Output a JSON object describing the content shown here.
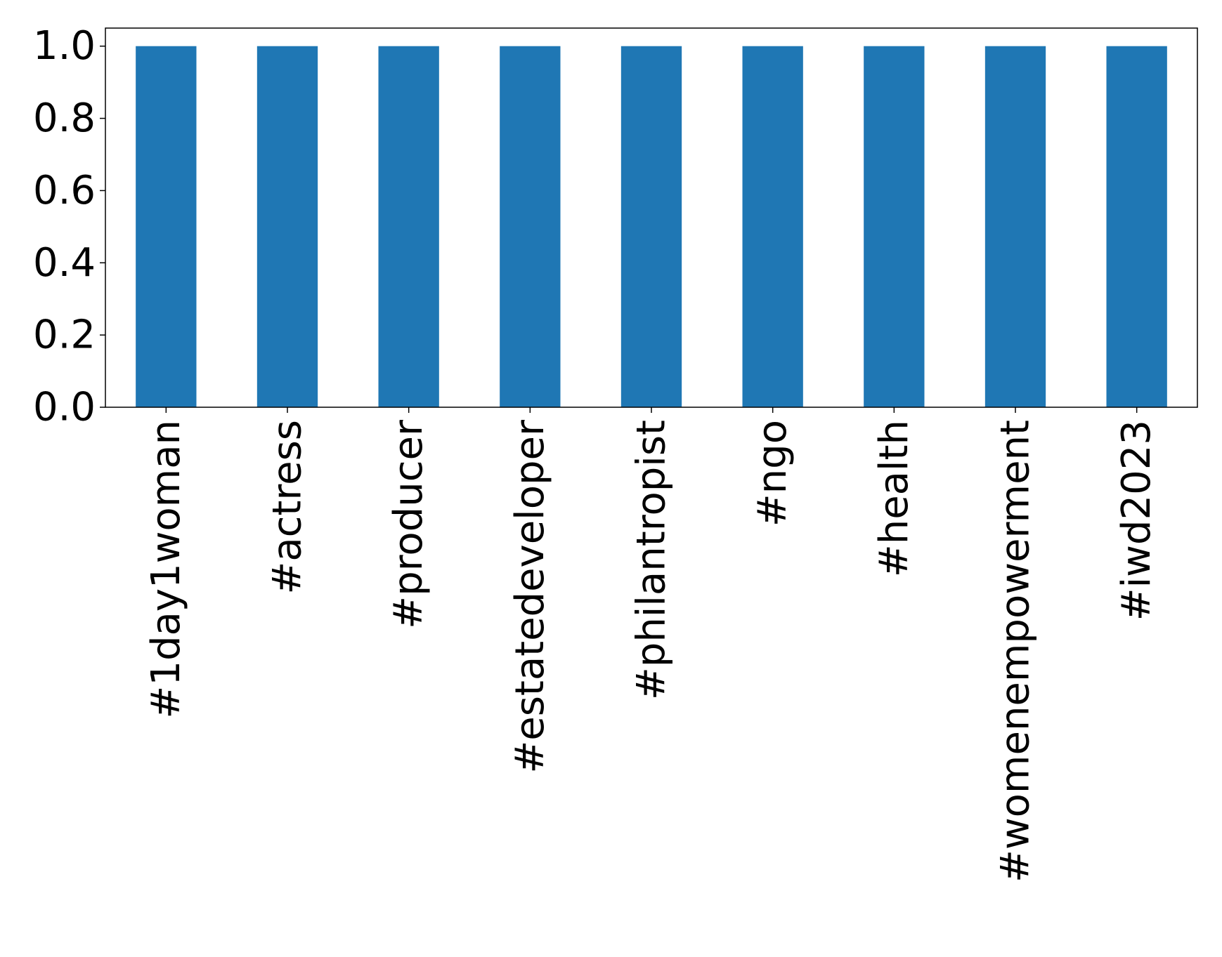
{
  "chart_data": {
    "type": "bar",
    "title": "",
    "xlabel": "",
    "ylabel": "",
    "categories": [
      "#1day1woman",
      "#actress",
      "#producer",
      "#estatedeveloper",
      "#philantropist",
      "#ngo",
      "#health",
      "#womenempowerment",
      "#iwd2023"
    ],
    "values": [
      1.0,
      1.0,
      1.0,
      1.0,
      1.0,
      1.0,
      1.0,
      1.0,
      1.0
    ],
    "ylim": [
      0,
      1.05
    ],
    "yticks": [
      "0.0",
      "0.2",
      "0.4",
      "0.6",
      "0.8",
      "1.0"
    ],
    "bar_color": "#1f77b4",
    "grid": false,
    "legend": "none",
    "xtick_rotation": "vertical"
  }
}
